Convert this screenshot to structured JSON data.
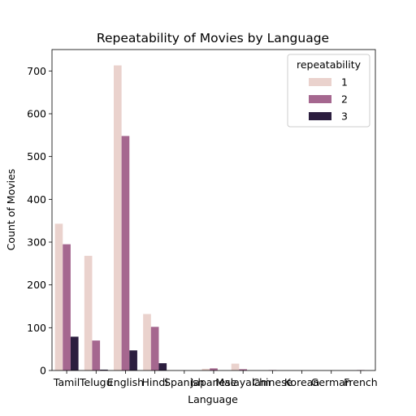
{
  "chart_data": {
    "type": "bar",
    "title": "Repeatability of Movies by Language",
    "xlabel": "Language",
    "ylabel": "Count of Movies",
    "categories": [
      "Tamil",
      "Telugu",
      "English",
      "Hindi",
      "Spanish",
      "Japanese",
      "Malayalam",
      "Chinese",
      "Korean",
      "German",
      "French"
    ],
    "series": [
      {
        "name": "1",
        "color": "#ead2cd",
        "values": [
          343,
          268,
          713,
          132,
          0,
          4,
          16,
          0,
          0,
          0,
          0
        ]
      },
      {
        "name": "2",
        "color": "#a5678f",
        "values": [
          295,
          70,
          548,
          102,
          0,
          5,
          3,
          1,
          0,
          0,
          1
        ]
      },
      {
        "name": "3",
        "color": "#2c1e3f",
        "values": [
          79,
          2,
          47,
          17,
          0,
          0,
          0,
          0,
          0,
          0,
          0
        ]
      }
    ],
    "ylim": [
      0,
      750
    ],
    "yticks": [
      0,
      100,
      200,
      300,
      400,
      500,
      600,
      700
    ],
    "grid": false,
    "legend": {
      "title": "repeatability",
      "placement": "top-right"
    }
  }
}
